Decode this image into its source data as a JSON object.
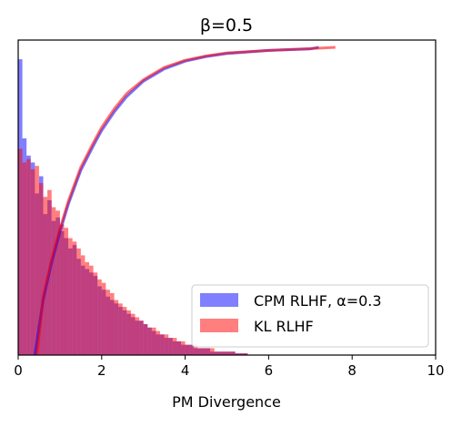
{
  "chart_data": {
    "type": "bar",
    "title": "β=0.5",
    "xlabel": "PM Divergence",
    "ylabel": "",
    "xlim": [
      0,
      10
    ],
    "xticks": [
      "0",
      "2",
      "4",
      "6",
      "8",
      "10"
    ],
    "y_axis_ticks_shown": false,
    "grid": false,
    "legend_position": "bottom-right",
    "bin_width": 0.1,
    "series": [
      {
        "name": "CPM RLHF, α=0.3",
        "color": "#0000ff",
        "alpha": 0.5,
        "histogram_density": [
          0.86,
          0.63,
          0.58,
          0.56,
          0.47,
          0.52,
          0.41,
          0.45,
          0.39,
          0.4,
          0.36,
          0.34,
          0.31,
          0.32,
          0.28,
          0.26,
          0.25,
          0.24,
          0.23,
          0.2,
          0.19,
          0.17,
          0.16,
          0.15,
          0.14,
          0.13,
          0.12,
          0.11,
          0.1,
          0.1,
          0.09,
          0.08,
          0.07,
          0.06,
          0.06,
          0.05,
          0.05,
          0.04,
          0.04,
          0.03,
          0.03,
          0.03,
          0.02,
          0.02,
          0.02,
          0.02,
          0.01,
          0.01,
          0.01,
          0.01,
          0.01,
          0.01,
          0.005,
          0.005,
          0.005
        ],
        "cdf_x": [
          0.4,
          0.6,
          0.8,
          1.0,
          1.2,
          1.5,
          1.8,
          2.0,
          2.3,
          2.6,
          3.0,
          3.5,
          4.0,
          4.5,
          5.0,
          6.0,
          7.0,
          7.2
        ],
        "cdf_y": [
          0.0,
          0.18,
          0.3,
          0.4,
          0.49,
          0.6,
          0.68,
          0.73,
          0.79,
          0.84,
          0.89,
          0.93,
          0.955,
          0.97,
          0.98,
          0.99,
          0.995,
          1.0
        ]
      },
      {
        "name": "KL RLHF",
        "color": "#ff0000",
        "alpha": 0.5,
        "histogram_density": [
          0.6,
          0.56,
          0.57,
          0.54,
          0.55,
          0.5,
          0.46,
          0.48,
          0.43,
          0.42,
          0.38,
          0.37,
          0.34,
          0.33,
          0.31,
          0.29,
          0.27,
          0.26,
          0.24,
          0.22,
          0.21,
          0.19,
          0.18,
          0.16,
          0.15,
          0.14,
          0.13,
          0.12,
          0.11,
          0.1,
          0.09,
          0.08,
          0.08,
          0.07,
          0.06,
          0.06,
          0.05,
          0.05,
          0.04,
          0.04,
          0.03,
          0.03,
          0.03,
          0.02,
          0.02,
          0.02,
          0.02,
          0.01,
          0.01,
          0.01,
          0.01,
          0.01,
          0.005,
          0.005,
          0.005
        ],
        "cdf_x": [
          0.45,
          0.6,
          0.8,
          1.0,
          1.2,
          1.5,
          1.8,
          2.0,
          2.3,
          2.6,
          3.0,
          3.5,
          4.0,
          4.5,
          5.0,
          6.0,
          7.0,
          7.6
        ],
        "cdf_y": [
          0.0,
          0.19,
          0.31,
          0.41,
          0.5,
          0.61,
          0.69,
          0.74,
          0.8,
          0.85,
          0.895,
          0.935,
          0.958,
          0.972,
          0.982,
          0.99,
          0.996,
          1.0
        ]
      }
    ]
  }
}
